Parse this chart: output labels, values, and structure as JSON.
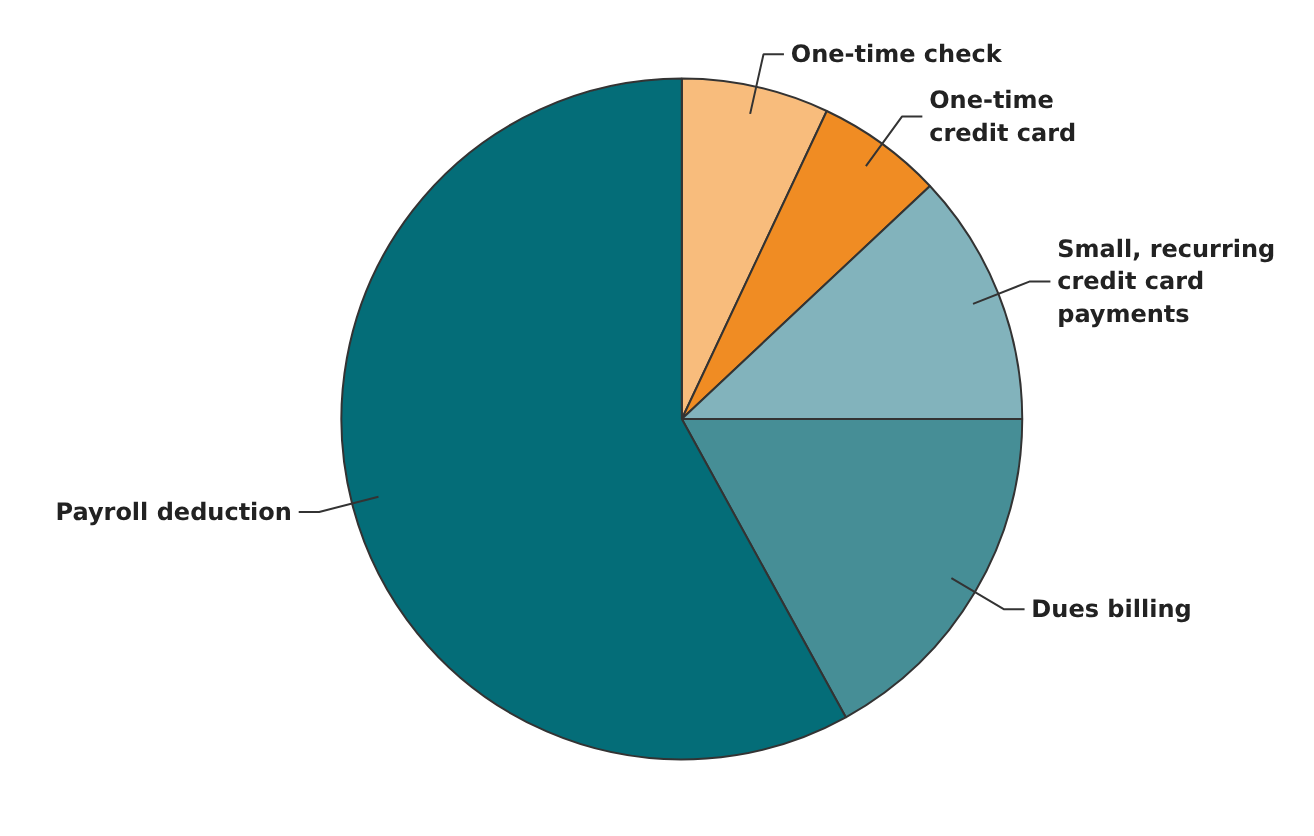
{
  "chart_data": {
    "type": "pie",
    "categories": [
      "One-time check",
      "One-time\ncredit card",
      "Small, recurring\ncredit card\npayments",
      "Dues billing",
      "Payroll deduction"
    ],
    "values": [
      7,
      6,
      12,
      17,
      58
    ],
    "colors": [
      "#f8bc7c",
      "#f08c23",
      "#82b3bc",
      "#468e96",
      "#046d78"
    ]
  }
}
